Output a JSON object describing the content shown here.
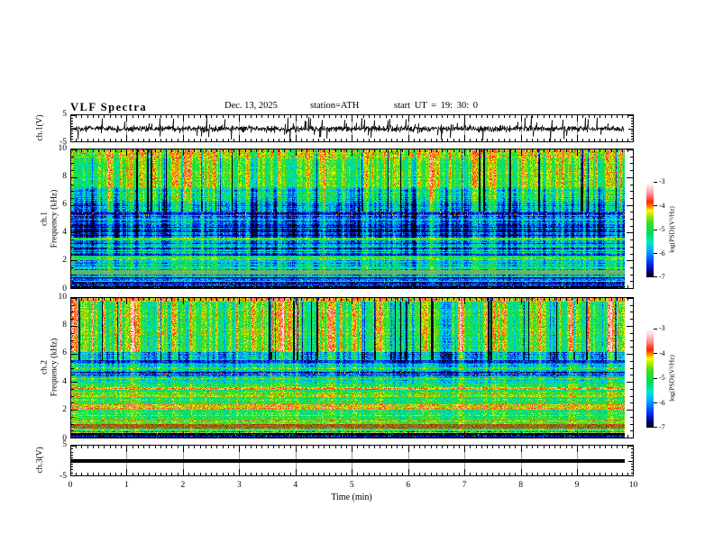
{
  "header": {
    "title": "VLF Spectra",
    "date": "Dec. 13, 2025",
    "station": "station=ATH",
    "start_ut": "start UT =  19: 30: 0"
  },
  "axes": {
    "time": {
      "label": "Time (min)",
      "min": 0,
      "max": 10,
      "ticks": [
        "0",
        "1",
        "2",
        "3",
        "4",
        "5",
        "6",
        "7",
        "8",
        "9",
        "10"
      ]
    },
    "ch1_wave": {
      "label": "ch.1(V)",
      "min": -5,
      "max": 5,
      "ticks": [
        "5",
        "-5"
      ]
    },
    "spec1": {
      "label_channel": "ch.1",
      "label_axis": "Frequency (kHz)",
      "min": 0,
      "max": 10,
      "ticks": [
        "10",
        "8",
        "6",
        "4",
        "2",
        "0"
      ]
    },
    "spec2": {
      "label_channel": "ch.2",
      "label_axis": "Frequency (kHz)",
      "min": 0,
      "max": 10,
      "ticks": [
        "10",
        "8",
        "6",
        "4",
        "2",
        "0"
      ]
    },
    "ch3_wave": {
      "label": "ch.3(V)",
      "min": -5,
      "max": 5,
      "ticks": [
        "5",
        "-5"
      ]
    }
  },
  "colorbar": {
    "label": "log(PSD)(V²/Hz)",
    "ticks": [
      "-3",
      "-4",
      "-5",
      "-6",
      "-7"
    ],
    "min": -7,
    "max": -3
  },
  "colormap": {
    "range": [
      -7,
      -3
    ],
    "stops": [
      [
        0.0,
        "#000000"
      ],
      [
        0.06,
        "#000085"
      ],
      [
        0.15,
        "#0030ff"
      ],
      [
        0.27,
        "#00aaff"
      ],
      [
        0.36,
        "#00e6c8"
      ],
      [
        0.46,
        "#00dc55"
      ],
      [
        0.58,
        "#44dc22"
      ],
      [
        0.66,
        "#bbee00"
      ],
      [
        0.7,
        "#ffff00"
      ],
      [
        0.74,
        "#ff9000"
      ],
      [
        0.79,
        "#ff2200"
      ],
      [
        0.87,
        "#ff8888"
      ],
      [
        0.94,
        "#ffd0d0"
      ],
      [
        1.0,
        "#ffffff"
      ]
    ]
  },
  "chart_data": [
    {
      "type": "line",
      "name": "ch.1 voltage waveform",
      "x_range_min": [
        0,
        9.83
      ],
      "y_range_v": [
        -5,
        5
      ],
      "description": "Broadband noise centred on 0 V (~±1 V) with dense impulsive spikes reaching about ±4.5 V for the full 9.83 min record",
      "gen": {
        "seed": 17,
        "noise_sigma": 0.9,
        "spike_prob": 0.05,
        "spike_amp_min": 1.0,
        "spike_amp_max": 4.3
      }
    },
    {
      "type": "heatmap",
      "name": "ch.1 VLF spectrogram",
      "x_range_min": [
        0,
        9.83
      ],
      "y_range_khz": [
        0,
        10
      ],
      "z_range_logpsd": [
        -7,
        -3
      ],
      "description": "Strong emission (~-4.5) above 7 kHz with dark vertical dropouts; quiet dark-blue band 2.5-5.2 kHz (~-6.3) with cyan striations; narrow enhanced lines near 5.3, 3.5, 2.2 and 1.0 kHz; near-black band below 0.4 kHz",
      "gen": {
        "seed": 11,
        "deep_n": 26,
        "deep_amp": 1.8
      },
      "bands": [
        {
          "f_hi": 10.0,
          "f_lo": 9.35,
          "level": -4.35,
          "striation": 0.15,
          "vstreak": 0.55,
          "noise": 0.45,
          "speckle": [
            0.05,
            -3.7
          ],
          "deep": true
        },
        {
          "f_hi": 9.35,
          "f_lo": 7.3,
          "level": -4.65,
          "striation": 0.15,
          "vstreak": 0.8,
          "noise": 0.4,
          "deep": true
        },
        {
          "f_hi": 7.3,
          "f_lo": 6.3,
          "level": -5.25,
          "striation": 0.25,
          "vstreak": 0.95,
          "noise": 0.45,
          "deep": true
        },
        {
          "f_hi": 6.3,
          "f_lo": 5.5,
          "level": -5.8,
          "striation": 0.3,
          "vstreak": 0.85,
          "noise": 0.45,
          "deep": true
        },
        {
          "f_hi": 5.5,
          "f_lo": 5.28,
          "level": -6.5,
          "striation": 0.3,
          "vstreak": 0.3,
          "noise": 0.35,
          "speckle": [
            0.06,
            -4.1
          ]
        },
        {
          "f_hi": 5.28,
          "f_lo": 4.95,
          "level": -6.0,
          "striation": 0.45,
          "vstreak": 0.6,
          "noise": 0.45
        },
        {
          "f_hi": 4.95,
          "f_lo": 3.6,
          "level": -6.3,
          "striation": 0.5,
          "vstreak": 0.65,
          "noise": 0.45
        },
        {
          "f_hi": 3.6,
          "f_lo": 3.42,
          "level": -5.05,
          "striation": 0.35,
          "vstreak": 0.3,
          "noise": 0.4
        },
        {
          "f_hi": 3.42,
          "f_lo": 2.42,
          "level": -6.0,
          "striation": 0.5,
          "vstreak": 0.55,
          "noise": 0.45
        },
        {
          "f_hi": 2.42,
          "f_lo": 2.3,
          "level": -6.6,
          "striation": 0.35,
          "vstreak": 0.3,
          "noise": 0.35
        },
        {
          "f_hi": 2.3,
          "f_lo": 2.02,
          "level": -4.85,
          "striation": 0.4,
          "vstreak": 0.3,
          "noise": 0.45,
          "speckle": [
            0.03,
            -3.9
          ]
        },
        {
          "f_hi": 2.02,
          "f_lo": 1.25,
          "level": -5.5,
          "striation": 0.4,
          "vstreak": 0.5,
          "noise": 0.45
        },
        {
          "f_hi": 1.25,
          "f_lo": 0.92,
          "level": -5.0,
          "striation": 0.35,
          "vstreak": 0.2,
          "noise": 0.35,
          "blend": [
            "#96967d",
            0.55
          ]
        },
        {
          "f_hi": 0.92,
          "f_lo": 0.72,
          "level": -5.6,
          "striation": 0.5,
          "vstreak": 0.3,
          "noise": 0.5
        },
        {
          "f_hi": 0.72,
          "f_lo": 0.62,
          "level": -6.6,
          "striation": 0.4,
          "vstreak": 0.2,
          "noise": 0.4
        },
        {
          "f_hi": 0.62,
          "f_lo": 0.42,
          "level": -5.6,
          "striation": 0.5,
          "vstreak": 0.3,
          "noise": 0.5
        },
        {
          "f_hi": 0.42,
          "f_lo": 0.0,
          "level": -6.85,
          "striation": 0.4,
          "vstreak": 0.15,
          "noise": 0.4,
          "speckle": [
            0.06,
            -5.2
          ]
        }
      ]
    },
    {
      "type": "heatmap",
      "name": "ch.2 VLF spectrogram",
      "x_range_min": [
        0,
        9.83
      ],
      "y_range_khz": [
        0,
        10
      ],
      "z_range_logpsd": [
        -7,
        -3
      ],
      "description": "Green background (~-4.9) above 6 kHz cut by deep blue/black vertical streaks; cyan band 3.6-5.3 kHz with dark lane near 4.5 kHz; red-orange lines near 3.5 and 2.1 kHz; yellow-green band near 1 kHz; red-brown band 0.6-0.95 kHz; black below 0.3 kHz",
      "gen": {
        "seed": 29,
        "deep_n": 34,
        "deep_amp": 2.1
      },
      "bands": [
        {
          "f_hi": 10.0,
          "f_lo": 9.78,
          "level": -4.0,
          "striation": 0.2,
          "vstreak": 0.4,
          "noise": 0.5,
          "speckle": [
            0.12,
            -3.5
          ],
          "deep": true
        },
        {
          "f_hi": 9.78,
          "f_lo": 6.15,
          "level": -4.75,
          "striation": 0.18,
          "vstreak": 1.0,
          "noise": 0.45,
          "deep": true
        },
        {
          "f_hi": 6.15,
          "f_lo": 5.55,
          "level": -5.8,
          "striation": 0.3,
          "vstreak": 0.85,
          "noise": 0.5,
          "deep": true
        },
        {
          "f_hi": 5.55,
          "f_lo": 5.32,
          "level": -6.4,
          "striation": 0.35,
          "vstreak": 0.3,
          "noise": 0.4
        },
        {
          "f_hi": 5.32,
          "f_lo": 4.7,
          "level": -5.45,
          "striation": 0.45,
          "vstreak": 0.55,
          "noise": 0.5
        },
        {
          "f_hi": 4.7,
          "f_lo": 4.38,
          "level": -6.25,
          "striation": 0.5,
          "vstreak": 0.3,
          "noise": 0.45,
          "speckle": [
            0.05,
            -4.0
          ]
        },
        {
          "f_hi": 4.38,
          "f_lo": 3.62,
          "level": -5.3,
          "striation": 0.45,
          "vstreak": 0.45,
          "noise": 0.5
        },
        {
          "f_hi": 3.62,
          "f_lo": 3.42,
          "level": -4.15,
          "striation": 0.3,
          "vstreak": 0.2,
          "noise": 0.4
        },
        {
          "f_hi": 3.42,
          "f_lo": 2.35,
          "level": -4.9,
          "striation": 0.5,
          "vstreak": 0.35,
          "noise": 0.45,
          "speckle": [
            0.02,
            -3.9
          ]
        },
        {
          "f_hi": 2.35,
          "f_lo": 2.02,
          "level": -4.3,
          "striation": 0.4,
          "vstreak": 0.2,
          "noise": 0.45,
          "speckle": [
            0.04,
            -3.7
          ]
        },
        {
          "f_hi": 2.02,
          "f_lo": 1.18,
          "level": -4.9,
          "striation": 0.45,
          "vstreak": 0.3,
          "noise": 0.45
        },
        {
          "f_hi": 1.18,
          "f_lo": 0.95,
          "level": -4.5,
          "striation": 0.4,
          "vstreak": 0.2,
          "noise": 0.4
        },
        {
          "f_hi": 0.95,
          "f_lo": 0.62,
          "level": -4.15,
          "striation": 0.45,
          "vstreak": 0.2,
          "noise": 0.45,
          "blend": [
            "#501800",
            0.45
          ],
          "speckle": [
            0.05,
            -3.6
          ]
        },
        {
          "f_hi": 0.62,
          "f_lo": 0.3,
          "level": -5.2,
          "striation": 0.9,
          "vstreak": 0.2,
          "noise": 0.7
        },
        {
          "f_hi": 0.3,
          "f_lo": 0.0,
          "level": -6.9,
          "striation": 0.45,
          "vstreak": 0.1,
          "noise": 0.35,
          "speckle": [
            0.04,
            -5.0
          ]
        }
      ]
    },
    {
      "type": "line",
      "name": "ch.3 voltage waveform",
      "x_range_min": [
        0,
        9.83
      ],
      "y_range_v": [
        -5,
        5
      ],
      "description": "Constant flat thick trace at 0 V for the whole record",
      "gen": {
        "constant": 0,
        "thickness_v": 1.1
      }
    }
  ]
}
